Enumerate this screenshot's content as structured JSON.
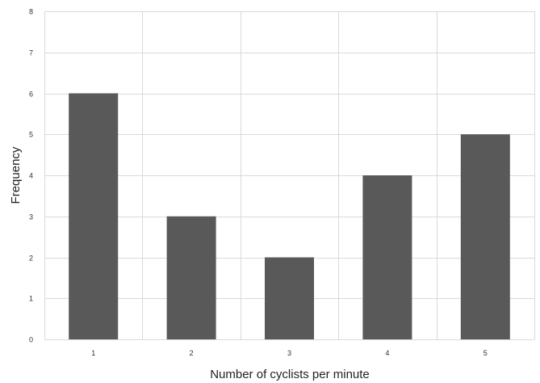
{
  "chart_data": {
    "type": "bar",
    "title": "",
    "xlabel": "Number of cyclists per minute",
    "ylabel": "Frequency",
    "categories": [
      "1",
      "2",
      "3",
      "4",
      "5"
    ],
    "series": [
      {
        "values": [
          6,
          3,
          2,
          4,
          5
        ],
        "color": "#595959"
      }
    ],
    "ylim": [
      0,
      8
    ],
    "yticks": [
      "0",
      "1",
      "2",
      "3",
      "4",
      "5",
      "6",
      "7",
      "8"
    ],
    "grid": true,
    "grid_color": "#d9d9d9",
    "legend": "none"
  }
}
